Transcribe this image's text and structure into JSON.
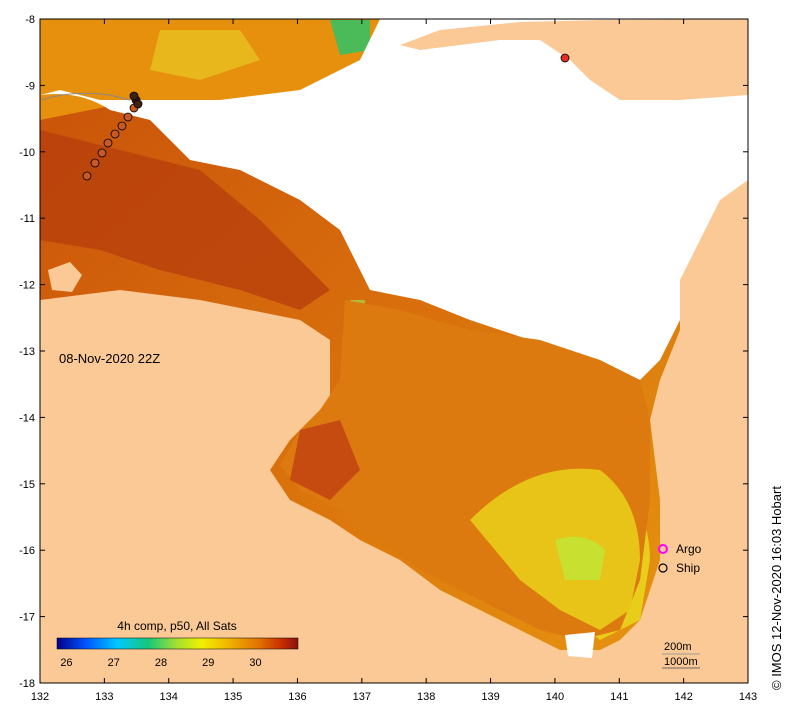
{
  "map": {
    "timestamp": "08-Nov-2020 22Z",
    "colorbar": {
      "title": "4h comp, p50, All Sats",
      "ticks": [
        "26",
        "27",
        "28",
        "29",
        "30"
      ],
      "range": [
        25.8,
        30.9
      ],
      "colors": [
        "#00008b",
        "#0055ff",
        "#00c8ff",
        "#18c878",
        "#a8e030",
        "#f0f000",
        "#f0b000",
        "#e07000",
        "#c83000",
        "#8b1010"
      ]
    },
    "axes": {
      "lon": [
        "132",
        "133",
        "134",
        "135",
        "136",
        "137",
        "138",
        "139",
        "140",
        "141",
        "142",
        "143"
      ],
      "lat": [
        "-8",
        "-9",
        "-10",
        "-11",
        "-12",
        "-13",
        "-14",
        "-15",
        "-16",
        "-17",
        "-18"
      ]
    },
    "legend": {
      "argo": "Argo",
      "ship": "Ship"
    },
    "depth_contours": {
      "c200": "200m",
      "c1000": "1000m"
    },
    "credit": "© IMOS 12-Nov-2020 16:03 Hobart",
    "colors": {
      "land": "#fbc995",
      "cloud": "#ffffff",
      "sea_warm": "#e07a10",
      "sea_hot": "#b8400c",
      "sea_cool": "#e8d41c"
    }
  }
}
